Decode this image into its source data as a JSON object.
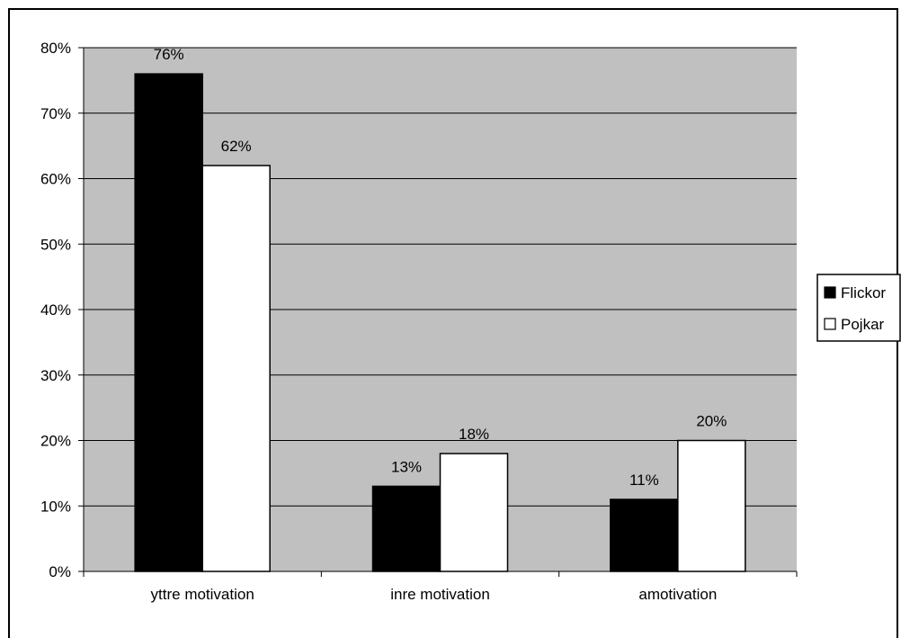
{
  "chart_data": {
    "type": "bar",
    "categories": [
      "yttre motivation",
      "inre motivation",
      "amotivation"
    ],
    "series": [
      {
        "name": "Flickor",
        "values": [
          76,
          13,
          11
        ],
        "labels": [
          "76%",
          "13%",
          "11%"
        ],
        "color": "#000000"
      },
      {
        "name": "Pojkar",
        "values": [
          62,
          18,
          20
        ],
        "labels": [
          "62%",
          "18%",
          "20%"
        ],
        "color": "#ffffff"
      }
    ],
    "ylim": [
      0,
      80
    ],
    "yticks": [
      0,
      10,
      20,
      30,
      40,
      50,
      60,
      70,
      80
    ],
    "ytick_labels": [
      "0%",
      "10%",
      "20%",
      "30%",
      "40%",
      "50%",
      "60%",
      "70%",
      "80%"
    ],
    "grid": true,
    "plot_background": "#c0c0c0",
    "legend_position": "right",
    "title": "",
    "xlabel": "",
    "ylabel": ""
  }
}
